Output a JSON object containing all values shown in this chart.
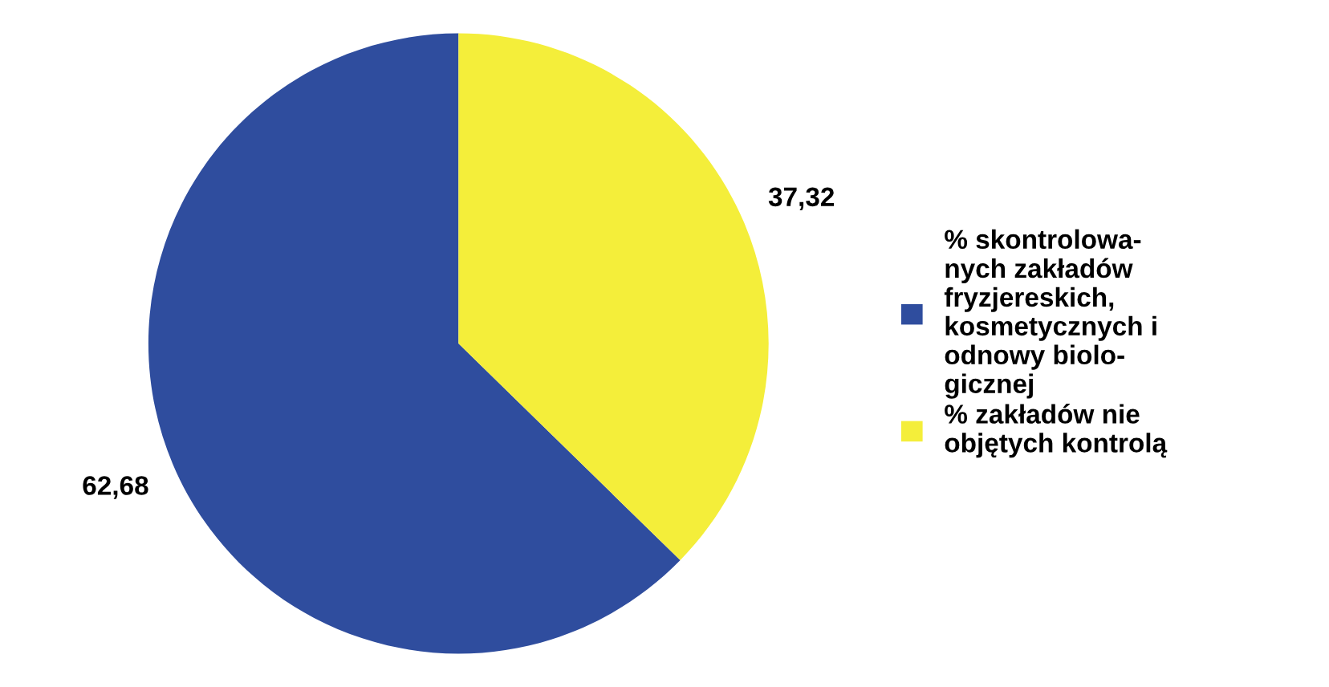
{
  "chart_data": {
    "type": "pie",
    "categories": [
      "% skontrolowa-\nnych zakładów\nfryzjereskich,\nkosmetycznych i\nodnowy biolo-\ngicznej",
      "% zakładów nie\nobjętych kontrolą"
    ],
    "values": [
      62.68,
      37.32
    ],
    "colors": [
      "#2f4d9e",
      "#f4ee3a"
    ],
    "value_labels": [
      "62,68",
      "37,32"
    ],
    "legend": "right"
  }
}
